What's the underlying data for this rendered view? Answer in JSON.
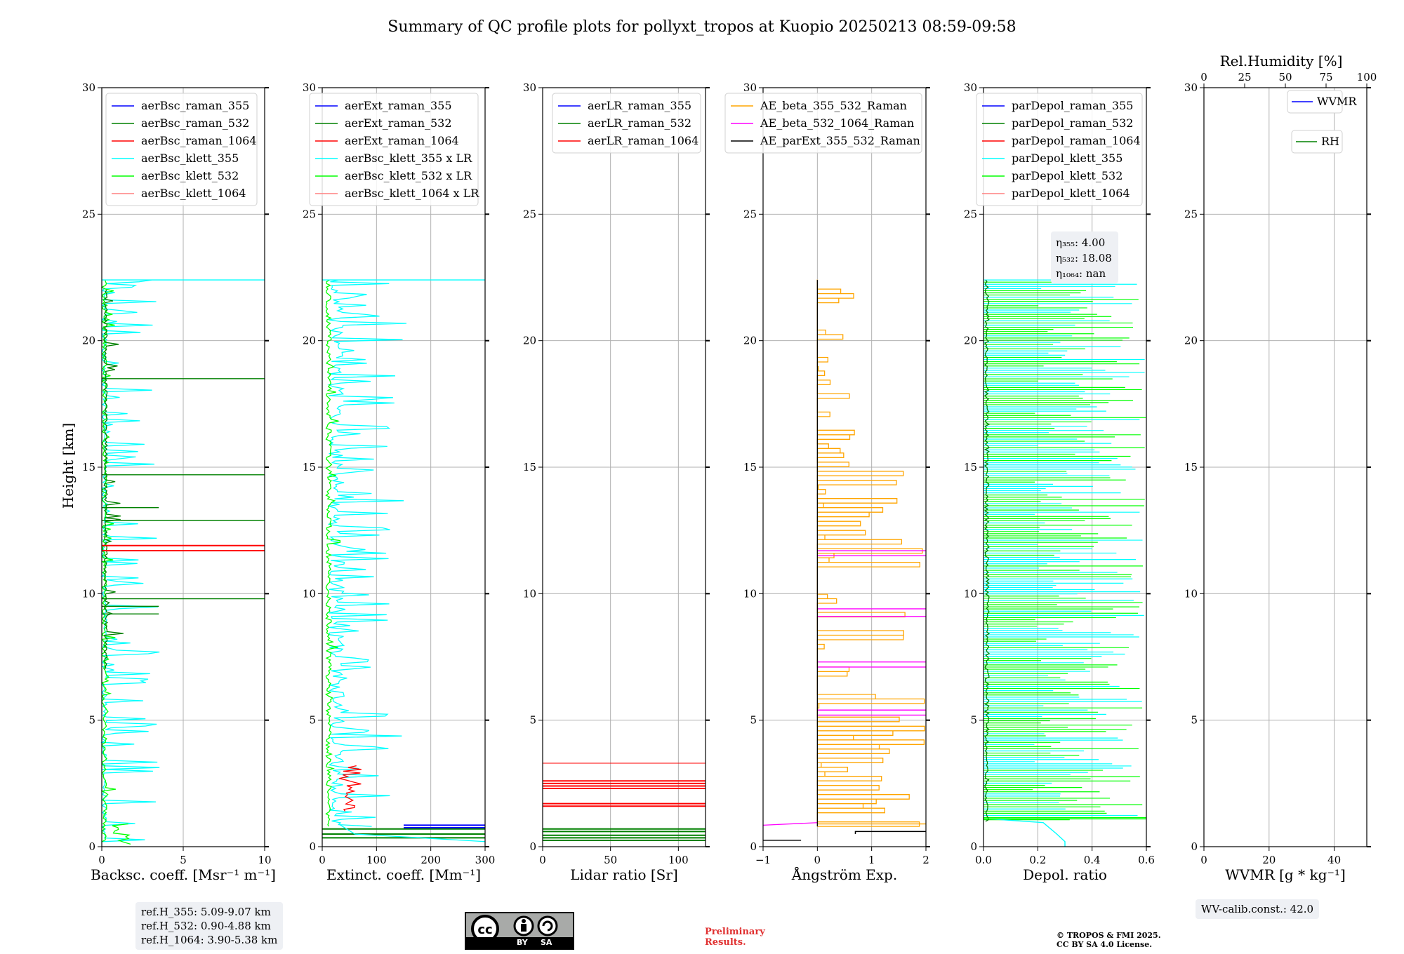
{
  "title": "Summary of QC profile plots for pollyxt_tropos at Kuopio 20250213 08:59-09:58",
  "ylabel": "Height [km]",
  "colors": {
    "blue": "#0000ff",
    "darkgreen": "#008000",
    "red": "#ff0000",
    "cyan": "#00ffff",
    "lime": "#00ff00",
    "salmon": "#ff8080",
    "orange": "#ffa500",
    "magenta": "#ff00ff",
    "black": "#000000"
  },
  "chart_data": [
    {
      "type": "line",
      "xlabel": "Backsc. coeff. [Msr⁻¹ m⁻¹]",
      "xlim": [
        0,
        10
      ],
      "ylim": [
        0,
        30
      ],
      "xticks": [
        "0",
        "5",
        "10"
      ],
      "yticks": [
        "0",
        "5",
        "10",
        "15",
        "20",
        "25",
        "30"
      ],
      "legend": [
        "aerBsc_raman_355",
        "aerBsc_raman_532",
        "aerBsc_raman_1064",
        "aerBsc_klett_355",
        "aerBsc_klett_532",
        "aerBsc_klett_1064"
      ],
      "series_notes": "noisy vertical profiles near 0 with spikes; aerBsc_klett_355 reaches ~10 at 22.4 km; aerBsc_raman_532 spikes to ~10 at 18.5, 14.7, 12.9, 9.8 km; aerBsc_raman_1064 spikes to ~10 at 11.7-11.9 km"
    },
    {
      "type": "line",
      "xlabel": "Extinct. coeff. [Mm⁻¹]",
      "xlim": [
        0,
        300
      ],
      "ylim": [
        0,
        30
      ],
      "xticks": [
        "0",
        "100",
        "200",
        "300"
      ],
      "yticks": [
        "0",
        "5",
        "10",
        "15",
        "20",
        "25",
        "30"
      ],
      "legend": [
        "aerExt_raman_355",
        "aerExt_raman_532",
        "aerExt_raman_1064",
        "aerBsc_klett_355 x LR",
        "aerBsc_klett_532 x LR",
        "aerBsc_klett_1064 x LR"
      ],
      "series_notes": "aerBsc_klett_355 x LR up to ~300 at 22.4 km; aerExt_raman_1064 ~90 around 3 km; aerExt_raman_355 ~300 near 0.8 km"
    },
    {
      "type": "line",
      "xlabel": "Lidar ratio [Sr]",
      "xlim": [
        0,
        120
      ],
      "ylim": [
        0,
        30
      ],
      "xticks": [
        "0",
        "50",
        "100"
      ],
      "yticks": [
        "0",
        "5",
        "10",
        "15",
        "20",
        "25",
        "30"
      ],
      "legend": [
        "aerLR_raman_355",
        "aerLR_raman_532",
        "aerLR_raman_1064"
      ],
      "series_notes": "aerLR_raman_1064 horizontal segments at 1.6-3.3 km; aerLR_raman_532 at 0.3-0.7 km"
    },
    {
      "type": "line",
      "xlabel": "Ångström Exp.",
      "xlim": [
        -1,
        2
      ],
      "ylim": [
        0,
        30
      ],
      "xticks": [
        "−1",
        "0",
        "1",
        "2"
      ],
      "yticks": [
        "0",
        "5",
        "10",
        "15",
        "20",
        "25",
        "30"
      ],
      "legend": [
        "AE_beta_355_532_Raman",
        "AE_beta_532_1064_Raman",
        "AE_parExt_355_532_Raman"
      ],
      "series_notes": "AE_beta_355_532_Raman orange steps between 0 and 2 from 0 to 22.4 km; AE_beta_532_1064_Raman magenta lines at 5.2, 7.2, 9.2, 11.6 km; AE_parExt_355_532_Raman black at 0.2-0.6 km"
    },
    {
      "type": "line",
      "xlabel": "Depol. ratio",
      "xlim": [
        0,
        0.6
      ],
      "ylim": [
        0,
        30
      ],
      "xticks": [
        "0.0",
        "0.2",
        "0.4",
        "0.6"
      ],
      "yticks": [
        "0",
        "5",
        "10",
        "15",
        "20",
        "25",
        "30"
      ],
      "legend": [
        "parDepol_raman_355",
        "parDepol_raman_532",
        "parDepol_raman_1064",
        "parDepol_klett_355",
        "parDepol_klett_532",
        "parDepol_klett_1064"
      ],
      "eta": {
        "label_355": "η₃₅₅: 4.00",
        "label_532": "η₅₃₂: 18.08",
        "label_1064": "η₁₀₆₄: nan"
      },
      "series_notes": "parDepol_klett_355 (cyan) and parDepol_klett_532 (lime) fill 0-0.6 with horizontal noise up to 22.4 km; cyan profile ~0.3 near the surface"
    },
    {
      "type": "line",
      "xlabel": "WVMR [g * kg⁻¹]",
      "xlim": [
        0,
        50
      ],
      "ylim": [
        0,
        30
      ],
      "xticks": [
        "0",
        "20",
        "40"
      ],
      "yticks": [
        "0",
        "5",
        "10",
        "15",
        "20",
        "25",
        "30"
      ],
      "top_axis_label": "Rel.Humidity [%]",
      "top_xticks": [
        "0",
        "25",
        "50",
        "75",
        "100"
      ],
      "legend": [
        "WVMR",
        "RH"
      ],
      "series_notes": "no data plotted"
    }
  ],
  "notes": {
    "refh": [
      "ref.H_355: 5.09-9.07 km",
      "ref.H_532: 0.90-4.88 km",
      "ref.H_1064: 3.90-5.38 km"
    ],
    "wv_calib": "WV-calib.const.: 42.0",
    "preliminary": [
      "Preliminary",
      "Results."
    ],
    "copyright": [
      "© TROPOS & FMI 2025.",
      "CC BY SA 4.0 License."
    ],
    "cc_by": "BY",
    "cc_sa": "SA",
    "cc_logo": "cc"
  }
}
